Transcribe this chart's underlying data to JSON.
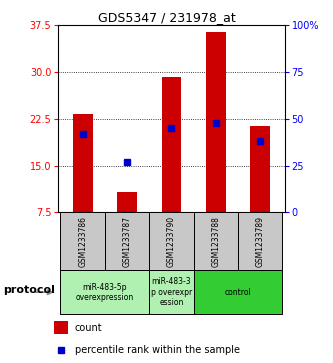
{
  "title": "GDS5347 / 231978_at",
  "samples": [
    "GSM1233786",
    "GSM1233787",
    "GSM1233790",
    "GSM1233788",
    "GSM1233789"
  ],
  "count_values": [
    23.3,
    10.7,
    29.2,
    36.5,
    21.3
  ],
  "count_base": 7.5,
  "percentile_values": [
    42,
    27,
    45,
    48,
    38
  ],
  "ylim_left": [
    7.5,
    37.5
  ],
  "ylim_right": [
    0,
    100
  ],
  "yticks_left": [
    7.5,
    15.0,
    22.5,
    30.0,
    37.5
  ],
  "yticks_right": [
    0,
    25,
    50,
    75,
    100
  ],
  "bar_color": "#cc0000",
  "dot_color": "#0000cc",
  "sample_box_color": "#c8c8c8",
  "group_configs": [
    {
      "spans": [
        0,
        1
      ],
      "label": "miR-483-5p\noverexpression",
      "color": "#b0f0b0"
    },
    {
      "spans": [
        2,
        2
      ],
      "label": "miR-483-3\np overexpr\nession",
      "color": "#b0f0b0"
    },
    {
      "spans": [
        3,
        4
      ],
      "label": "control",
      "color": "#33cc33"
    }
  ],
  "protocol_label": "protocol",
  "legend_count_label": "count",
  "legend_pct_label": "percentile rank within the sample",
  "bar_width": 0.45
}
